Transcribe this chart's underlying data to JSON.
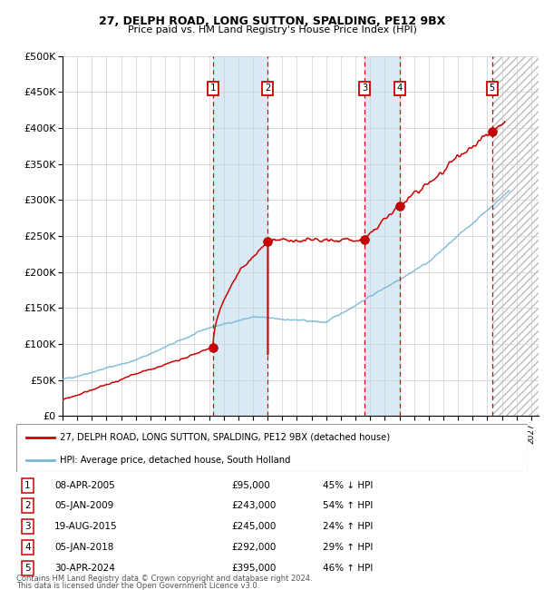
{
  "title1": "27, DELPH ROAD, LONG SUTTON, SPALDING, PE12 9BX",
  "title2": "Price paid vs. HM Land Registry's House Price Index (HPI)",
  "legend_line1": "27, DELPH ROAD, LONG SUTTON, SPALDING, PE12 9BX (detached house)",
  "legend_line2": "HPI: Average price, detached house, South Holland",
  "footer1": "Contains HM Land Registry data © Crown copyright and database right 2024.",
  "footer2": "This data is licensed under the Open Government Licence v3.0.",
  "sales": [
    {
      "num": 1,
      "date": "08-APR-2005",
      "price": 95000,
      "pct": "45%",
      "dir": "↓",
      "year": 2005.27
    },
    {
      "num": 2,
      "date": "05-JAN-2009",
      "price": 243000,
      "pct": "54%",
      "dir": "↑",
      "year": 2009.01
    },
    {
      "num": 3,
      "date": "19-AUG-2015",
      "price": 245000,
      "pct": "24%",
      "dir": "↑",
      "year": 2015.63
    },
    {
      "num": 4,
      "date": "05-JAN-2018",
      "price": 292000,
      "pct": "29%",
      "dir": "↑",
      "year": 2018.01
    },
    {
      "num": 5,
      "date": "30-APR-2024",
      "price": 395000,
      "pct": "46%",
      "dir": "↑",
      "year": 2024.33
    }
  ],
  "hpi_color": "#7ab8d9",
  "price_color": "#cc0000",
  "sale_dot_color": "#cc0000",
  "shade_color": "#daeaf5",
  "background_color": "#ffffff",
  "grid_color": "#cccccc",
  "ylim": [
    0,
    500000
  ],
  "xlim_start": 1995.0,
  "xlim_end": 2027.5,
  "yticks": [
    0,
    50000,
    100000,
    150000,
    200000,
    250000,
    300000,
    350000,
    400000,
    450000,
    500000
  ]
}
